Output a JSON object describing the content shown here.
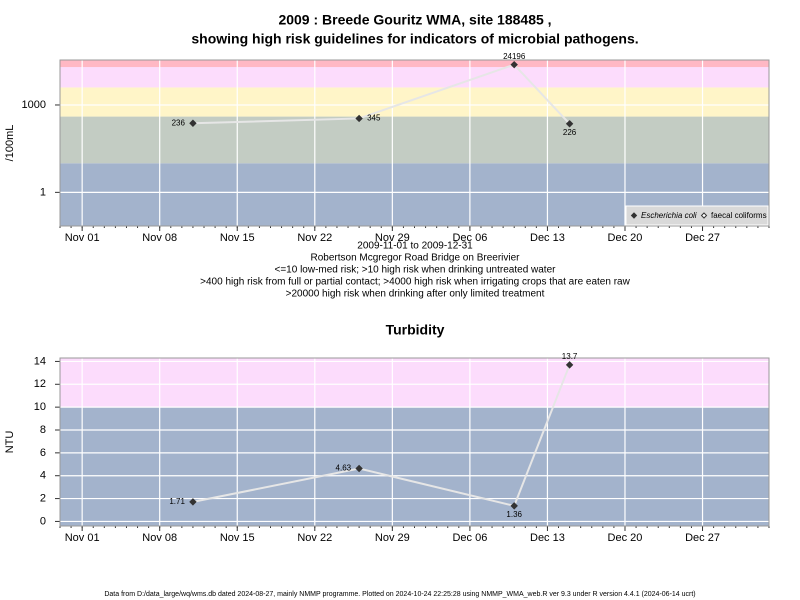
{
  "chart_data": [
    {
      "type": "line",
      "title": [
        "2009 : Breede Gouritz WMA, site 188485 ,",
        "showing high risk guidelines for indicators of microbial pathogens."
      ],
      "ylabel": "/100mL",
      "log_scale": true,
      "x": [
        "2009-11-11",
        "2009-11-26",
        "2009-12-10",
        "2009-12-15"
      ],
      "series": [
        {
          "name": "Escherichia coli",
          "color": "#333333",
          "values": [
            236,
            345,
            24196,
            226
          ]
        },
        {
          "name": "faecal coliforms",
          "color": "#ffffff",
          "values": [
            null,
            null,
            null,
            null
          ]
        }
      ],
      "line_color": "#e6e6e6",
      "xlim": [
        "2009-10-30",
        "2010-01-02"
      ],
      "xticks": [
        {
          "value": "2009-11-01",
          "label": "Nov 01"
        },
        {
          "value": "2009-11-08",
          "label": "Nov 08"
        },
        {
          "value": "2009-11-15",
          "label": "Nov 15"
        },
        {
          "value": "2009-11-22",
          "label": "Nov 22"
        },
        {
          "value": "2009-11-29",
          "label": "Nov 29"
        },
        {
          "value": "2009-12-06",
          "label": "Dec 06"
        },
        {
          "value": "2009-12-13",
          "label": "Dec 13"
        },
        {
          "value": "2009-12-20",
          "label": "Dec 20"
        },
        {
          "value": "2009-12-27",
          "label": "Dec 27"
        }
      ],
      "ylim": [
        0.07,
        35000
      ],
      "yticks": [
        1,
        1000
      ],
      "grid": true,
      "legend": "bottom-right",
      "bands": [
        {
          "lower": null,
          "upper": 10,
          "color": "#a3b3cc"
        },
        {
          "lower": 10,
          "upper": 400,
          "color": "#c3ccc3"
        },
        {
          "lower": 400,
          "upper": 4000,
          "color": "#fff5c8"
        },
        {
          "lower": 4000,
          "upper": 20000,
          "color": "#fcdcfc"
        },
        {
          "lower": 20000,
          "upper": null,
          "color": "#ffb8c4"
        }
      ],
      "notes": [
        "2009-11-01 to 2009-12-31",
        "Robertson Mcgregor Road Bridge on Breerivier",
        "<=10 low-med risk; >10 high risk when drinking untreated water",
        ">400 high risk from full or partial contact; >4000 high risk when irrigating crops that are eaten raw",
        ">20000 high risk when drinking after only limited treatment"
      ]
    },
    {
      "type": "line",
      "title": [
        "Turbidity"
      ],
      "ylabel": "NTU",
      "log_scale": false,
      "x": [
        "2009-11-11",
        "2009-11-26",
        "2009-12-10",
        "2009-12-15"
      ],
      "series": [
        {
          "name": "Turbidity",
          "color": "#333333",
          "values": [
            1.71,
            4.63,
            1.36,
            13.7
          ]
        }
      ],
      "line_color": "#e6e6e6",
      "xlim": [
        "2009-10-30",
        "2010-01-02"
      ],
      "xticks": [
        {
          "value": "2009-11-01",
          "label": "Nov 01"
        },
        {
          "value": "2009-11-08",
          "label": "Nov 08"
        },
        {
          "value": "2009-11-15",
          "label": "Nov 15"
        },
        {
          "value": "2009-11-22",
          "label": "Nov 22"
        },
        {
          "value": "2009-11-29",
          "label": "Nov 29"
        },
        {
          "value": "2009-12-06",
          "label": "Dec 06"
        },
        {
          "value": "2009-12-13",
          "label": "Dec 13"
        },
        {
          "value": "2009-12-20",
          "label": "Dec 20"
        },
        {
          "value": "2009-12-27",
          "label": "Dec 27"
        }
      ],
      "ylim": [
        -0.4,
        14.3
      ],
      "yticks": [
        0,
        2,
        4,
        6,
        8,
        10,
        12,
        14
      ],
      "grid": true,
      "bands": [
        {
          "lower": null,
          "upper": 10,
          "color": "#a3b3cc"
        },
        {
          "lower": 10,
          "upper": null,
          "color": "#fcdcfc"
        }
      ]
    }
  ],
  "footer": "Data from D:/data_large/wq/wms.db dated 2024-08-27, mainly NMMP programme. Plotted on 2024-10-24 22:25:28 using NMMP_WMA_web.R ver 9.3 under R version 4.4.1 (2024-06-14 ucrt)"
}
